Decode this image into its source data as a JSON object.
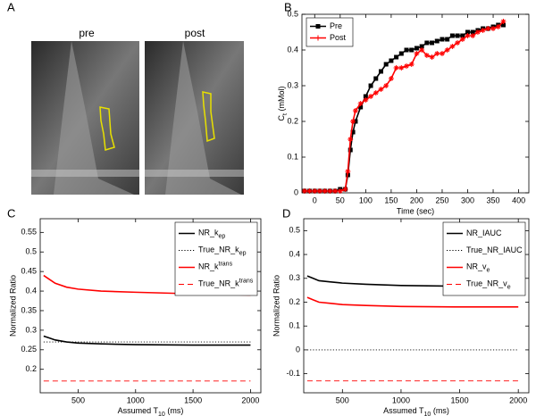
{
  "panel_labels": [
    "A",
    "B",
    "C",
    "D"
  ],
  "images": {
    "labels": [
      "pre",
      "post"
    ]
  },
  "chart_data": [
    {
      "type": "line",
      "xlabel": "Time (sec)",
      "ylabel": [
        {
          "text": "C"
        },
        {
          "text": "t",
          "sub": true
        },
        {
          "text": " (mMol)"
        }
      ],
      "x": [
        -20,
        -10,
        0,
        10,
        20,
        30,
        40,
        50,
        60,
        65,
        70,
        75,
        80,
        90,
        100,
        110,
        120,
        130,
        140,
        150,
        160,
        170,
        180,
        190,
        200,
        210,
        220,
        230,
        240,
        250,
        260,
        270,
        280,
        290,
        300,
        310,
        320,
        330,
        340,
        350,
        360,
        370
      ],
      "xlim": [
        -25,
        420
      ],
      "xticks": [
        0,
        50,
        100,
        150,
        200,
        250,
        300,
        350,
        400
      ],
      "ylim": [
        0,
        0.5
      ],
      "yticks": [
        0,
        0.1,
        0.2,
        0.3,
        0.4,
        0.5
      ],
      "legend": "upper left",
      "series": [
        {
          "name": "Pre",
          "color": "#000000",
          "dash": "solid",
          "marker": "square",
          "values": [
            0.005,
            0.005,
            0.005,
            0.005,
            0.005,
            0.005,
            0.005,
            0.01,
            0.01,
            0.05,
            0.12,
            0.17,
            0.2,
            0.24,
            0.27,
            0.3,
            0.32,
            0.34,
            0.36,
            0.37,
            0.38,
            0.39,
            0.4,
            0.4,
            0.405,
            0.41,
            0.42,
            0.42,
            0.425,
            0.43,
            0.43,
            0.44,
            0.44,
            0.44,
            0.45,
            0.45,
            0.455,
            0.46,
            0.46,
            0.465,
            0.47,
            0.47
          ]
        },
        {
          "name": "Post",
          "color": "#ff0000",
          "dash": "solid",
          "marker": "star",
          "values": [
            0.005,
            0.005,
            0.005,
            0.005,
            0.005,
            0.005,
            0.005,
            0.005,
            0.01,
            0.06,
            0.15,
            0.2,
            0.23,
            0.25,
            0.26,
            0.27,
            0.28,
            0.29,
            0.3,
            0.32,
            0.35,
            0.35,
            0.355,
            0.36,
            0.39,
            0.4,
            0.385,
            0.38,
            0.39,
            0.39,
            0.4,
            0.41,
            0.42,
            0.43,
            0.44,
            0.44,
            0.45,
            0.455,
            0.46,
            0.46,
            0.465,
            0.48
          ]
        }
      ]
    },
    {
      "type": "line",
      "xlabel": [
        {
          "text": "Assumed T"
        },
        {
          "text": "10",
          "sub": true
        },
        {
          "text": " (ms)"
        }
      ],
      "ylabel": "Normalized Ratio",
      "x": [
        200,
        250,
        300,
        400,
        500,
        700,
        1000,
        1500,
        2000
      ],
      "xlim": [
        170,
        2090
      ],
      "xticks": [
        500,
        1000,
        1500,
        2000
      ],
      "ylim": [
        0.14,
        0.585
      ],
      "yticks": [
        0.2,
        0.25,
        0.3,
        0.35,
        0.4,
        0.45,
        0.5,
        0.55
      ],
      "legend": "upper right",
      "series": [
        {
          "name": [
            {
              "text": "NR_k"
            },
            {
              "text": "ep",
              "sub": true
            }
          ],
          "color": "#000000",
          "dash": "solid",
          "values": [
            0.285,
            0.28,
            0.275,
            0.27,
            0.267,
            0.265,
            0.263,
            0.262,
            0.262
          ]
        },
        {
          "name": [
            {
              "text": "True_NR_k"
            },
            {
              "text": "ep",
              "sub": true
            }
          ],
          "color": "#000000",
          "dash": "dotted",
          "values": [
            0.27,
            0.27,
            0.27,
            0.27,
            0.27,
            0.27,
            0.27,
            0.27,
            0.27
          ]
        },
        {
          "name": [
            {
              "text": "NR_k"
            },
            {
              "text": "trans",
              "sup": true
            }
          ],
          "color": "#ff0000",
          "dash": "solid",
          "values": [
            0.44,
            0.43,
            0.42,
            0.41,
            0.405,
            0.4,
            0.397,
            0.393,
            0.39
          ]
        },
        {
          "name": [
            {
              "text": "True_NR_k"
            },
            {
              "text": "trans",
              "sup": true
            }
          ],
          "color": "#ff0000",
          "dash": "dashed",
          "values": [
            0.17,
            0.17,
            0.17,
            0.17,
            0.17,
            0.17,
            0.17,
            0.17,
            0.17
          ]
        }
      ]
    },
    {
      "type": "line",
      "xlabel": [
        {
          "text": "Assumed T"
        },
        {
          "text": "10",
          "sub": true
        },
        {
          "text": " (ms)"
        }
      ],
      "ylabel": "Normalized Ratio",
      "x": [
        200,
        250,
        300,
        400,
        500,
        700,
        1000,
        1500,
        2000
      ],
      "xlim": [
        170,
        2090
      ],
      "xticks": [
        500,
        1000,
        1500,
        2000
      ],
      "ylim": [
        -0.18,
        0.55
      ],
      "yticks": [
        -0.1,
        0,
        0.1,
        0.2,
        0.3,
        0.4,
        0.5
      ],
      "legend": "upper right",
      "series": [
        {
          "name": "NR_IAUC",
          "color": "#000000",
          "dash": "solid",
          "values": [
            0.31,
            0.3,
            0.29,
            0.285,
            0.28,
            0.275,
            0.27,
            0.267,
            0.265
          ]
        },
        {
          "name": "True_NR_IAUC",
          "color": "#000000",
          "dash": "dotted",
          "values": [
            0,
            0,
            0,
            0,
            0,
            0,
            0,
            0,
            0
          ]
        },
        {
          "name": [
            {
              "text": "NR_v"
            },
            {
              "text": "e",
              "sub": true
            }
          ],
          "color": "#ff0000",
          "dash": "solid",
          "values": [
            0.22,
            0.21,
            0.2,
            0.195,
            0.19,
            0.186,
            0.182,
            0.18,
            0.18
          ]
        },
        {
          "name": [
            {
              "text": "True_NR_v"
            },
            {
              "text": "e",
              "sub": true
            }
          ],
          "color": "#ff0000",
          "dash": "dashed",
          "values": [
            -0.13,
            -0.13,
            -0.13,
            -0.13,
            -0.13,
            -0.13,
            -0.13,
            -0.13,
            -0.13
          ]
        }
      ]
    }
  ]
}
